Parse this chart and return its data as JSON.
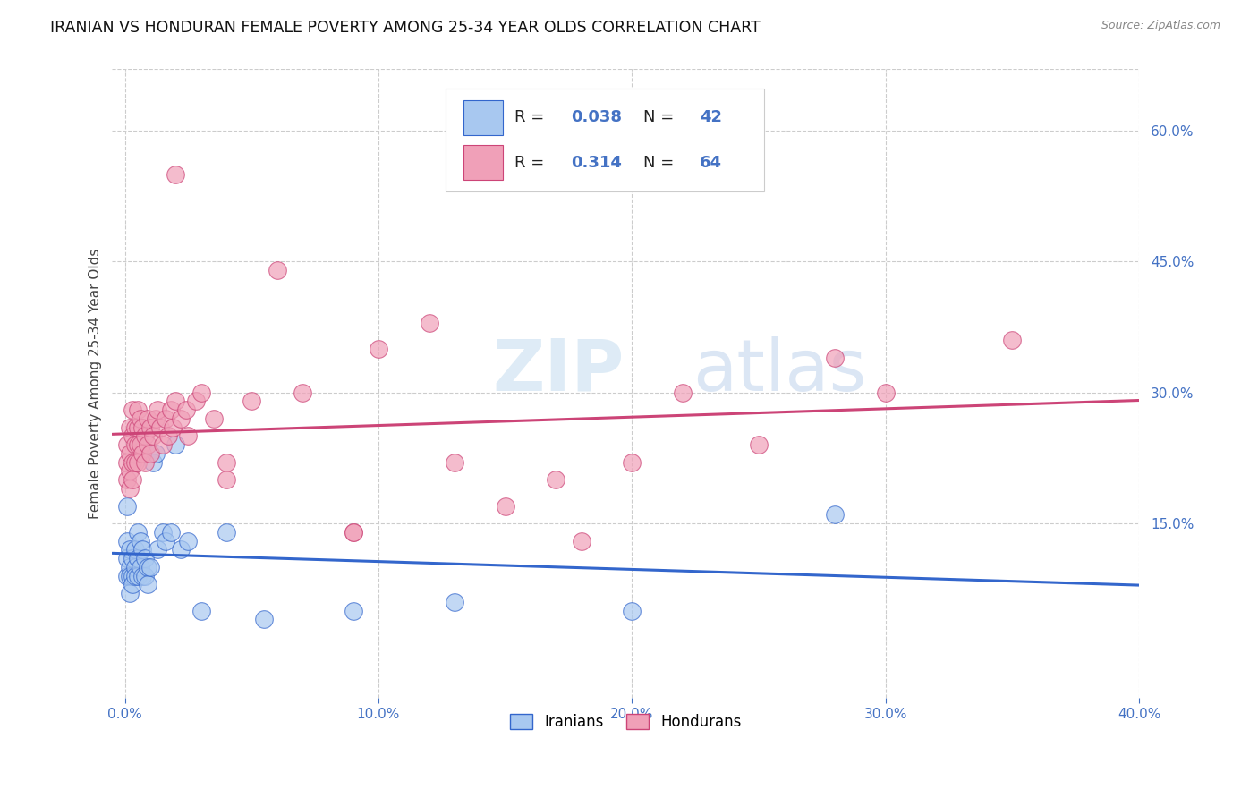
{
  "title": "IRANIAN VS HONDURAN FEMALE POVERTY AMONG 25-34 YEAR OLDS CORRELATION CHART",
  "source": "Source: ZipAtlas.com",
  "ylabel": "Female Poverty Among 25-34 Year Olds",
  "xlabel_ticks": [
    "0.0%",
    "10.0%",
    "20.0%",
    "30.0%",
    "40.0%"
  ],
  "xlabel_vals": [
    0.0,
    0.1,
    0.2,
    0.3,
    0.4
  ],
  "ylabel_ticks_right": [
    "15.0%",
    "30.0%",
    "45.0%",
    "60.0%"
  ],
  "ylabel_vals_right": [
    0.15,
    0.3,
    0.45,
    0.6
  ],
  "xlim": [
    -0.005,
    0.4
  ],
  "ylim": [
    -0.05,
    0.67
  ],
  "iranian_color": "#A8C8F0",
  "honduran_color": "#F0A0B8",
  "iranian_line_color": "#3366CC",
  "honduran_line_color": "#CC4477",
  "label_color_blue": "#4472C4",
  "background_color": "#FFFFFF",
  "watermark_color": "#D8EAF8",
  "iranians_x": [
    0.001,
    0.001,
    0.001,
    0.001,
    0.002,
    0.002,
    0.002,
    0.002,
    0.003,
    0.003,
    0.003,
    0.004,
    0.004,
    0.004,
    0.005,
    0.005,
    0.005,
    0.006,
    0.006,
    0.007,
    0.007,
    0.008,
    0.008,
    0.009,
    0.009,
    0.01,
    0.011,
    0.012,
    0.013,
    0.015,
    0.016,
    0.018,
    0.02,
    0.022,
    0.025,
    0.03,
    0.04,
    0.055,
    0.09,
    0.13,
    0.2,
    0.28
  ],
  "iranians_y": [
    0.17,
    0.13,
    0.11,
    0.09,
    0.12,
    0.1,
    0.09,
    0.07,
    0.11,
    0.09,
    0.08,
    0.12,
    0.1,
    0.09,
    0.14,
    0.11,
    0.09,
    0.13,
    0.1,
    0.12,
    0.09,
    0.11,
    0.09,
    0.1,
    0.08,
    0.1,
    0.22,
    0.23,
    0.12,
    0.14,
    0.13,
    0.14,
    0.24,
    0.12,
    0.13,
    0.05,
    0.14,
    0.04,
    0.05,
    0.06,
    0.05,
    0.16
  ],
  "hondurans_x": [
    0.001,
    0.001,
    0.001,
    0.002,
    0.002,
    0.002,
    0.002,
    0.003,
    0.003,
    0.003,
    0.003,
    0.004,
    0.004,
    0.004,
    0.005,
    0.005,
    0.005,
    0.005,
    0.006,
    0.006,
    0.007,
    0.007,
    0.008,
    0.008,
    0.009,
    0.009,
    0.01,
    0.01,
    0.011,
    0.012,
    0.013,
    0.014,
    0.015,
    0.016,
    0.017,
    0.018,
    0.019,
    0.02,
    0.022,
    0.024,
    0.025,
    0.028,
    0.03,
    0.035,
    0.04,
    0.05,
    0.06,
    0.07,
    0.09,
    0.1,
    0.12,
    0.15,
    0.17,
    0.2,
    0.25,
    0.3,
    0.02,
    0.04,
    0.09,
    0.13,
    0.18,
    0.22,
    0.28,
    0.35
  ],
  "hondurans_y": [
    0.24,
    0.22,
    0.2,
    0.26,
    0.23,
    0.21,
    0.19,
    0.28,
    0.25,
    0.22,
    0.2,
    0.26,
    0.24,
    0.22,
    0.28,
    0.26,
    0.24,
    0.22,
    0.27,
    0.24,
    0.26,
    0.23,
    0.25,
    0.22,
    0.27,
    0.24,
    0.26,
    0.23,
    0.25,
    0.27,
    0.28,
    0.26,
    0.24,
    0.27,
    0.25,
    0.28,
    0.26,
    0.29,
    0.27,
    0.28,
    0.25,
    0.29,
    0.3,
    0.27,
    0.22,
    0.29,
    0.44,
    0.3,
    0.14,
    0.35,
    0.38,
    0.17,
    0.2,
    0.22,
    0.24,
    0.3,
    0.55,
    0.2,
    0.14,
    0.22,
    0.13,
    0.3,
    0.34,
    0.36
  ]
}
